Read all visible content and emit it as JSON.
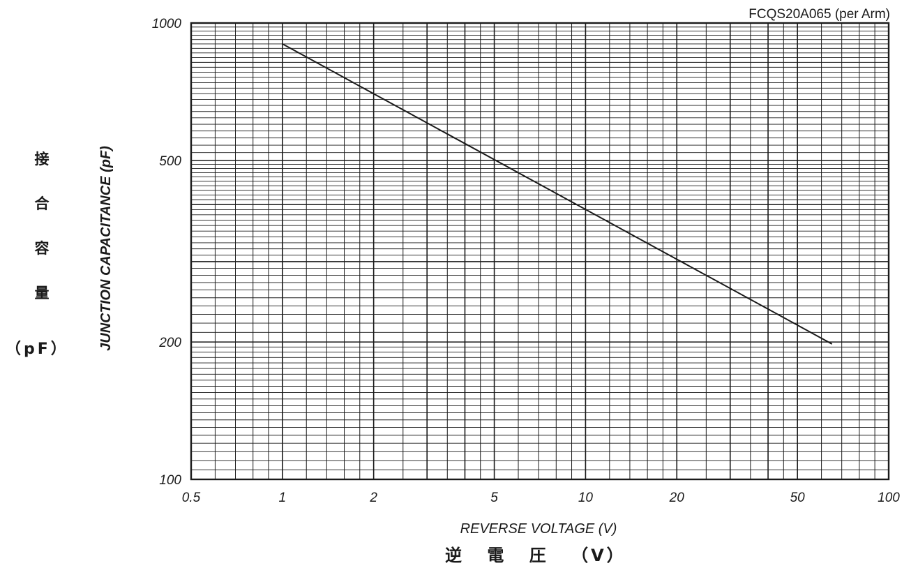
{
  "chart_data": {
    "type": "line",
    "title": "FCQS20A065 (per Arm)",
    "xlabel": "REVERSE VOLTAGE (V)",
    "xlabel_jp": "逆 電 圧 （V）",
    "ylabel": "JUNCTION CAPACITANCE (pF)",
    "ylabel_jp": [
      "接",
      "合",
      "容",
      "量"
    ],
    "ylabel_jp_unit": "（pF）",
    "x_scale": "log",
    "y_scale": "log",
    "xlim": [
      0.5,
      100
    ],
    "ylim": [
      100,
      1000
    ],
    "x_ticks": [
      0.5,
      1,
      2,
      5,
      10,
      20,
      50,
      100
    ],
    "x_tick_labels": [
      "0.5",
      "1",
      "2",
      "5",
      "10",
      "20",
      "50",
      "100"
    ],
    "y_ticks": [
      100,
      200,
      500,
      1000
    ],
    "y_tick_labels": [
      "100",
      "200",
      "500",
      "1000"
    ],
    "grid": true,
    "series": [
      {
        "x": [
          1,
          65
        ],
        "y": [
          900,
          198
        ],
        "color": "#1a1a1a"
      }
    ]
  }
}
